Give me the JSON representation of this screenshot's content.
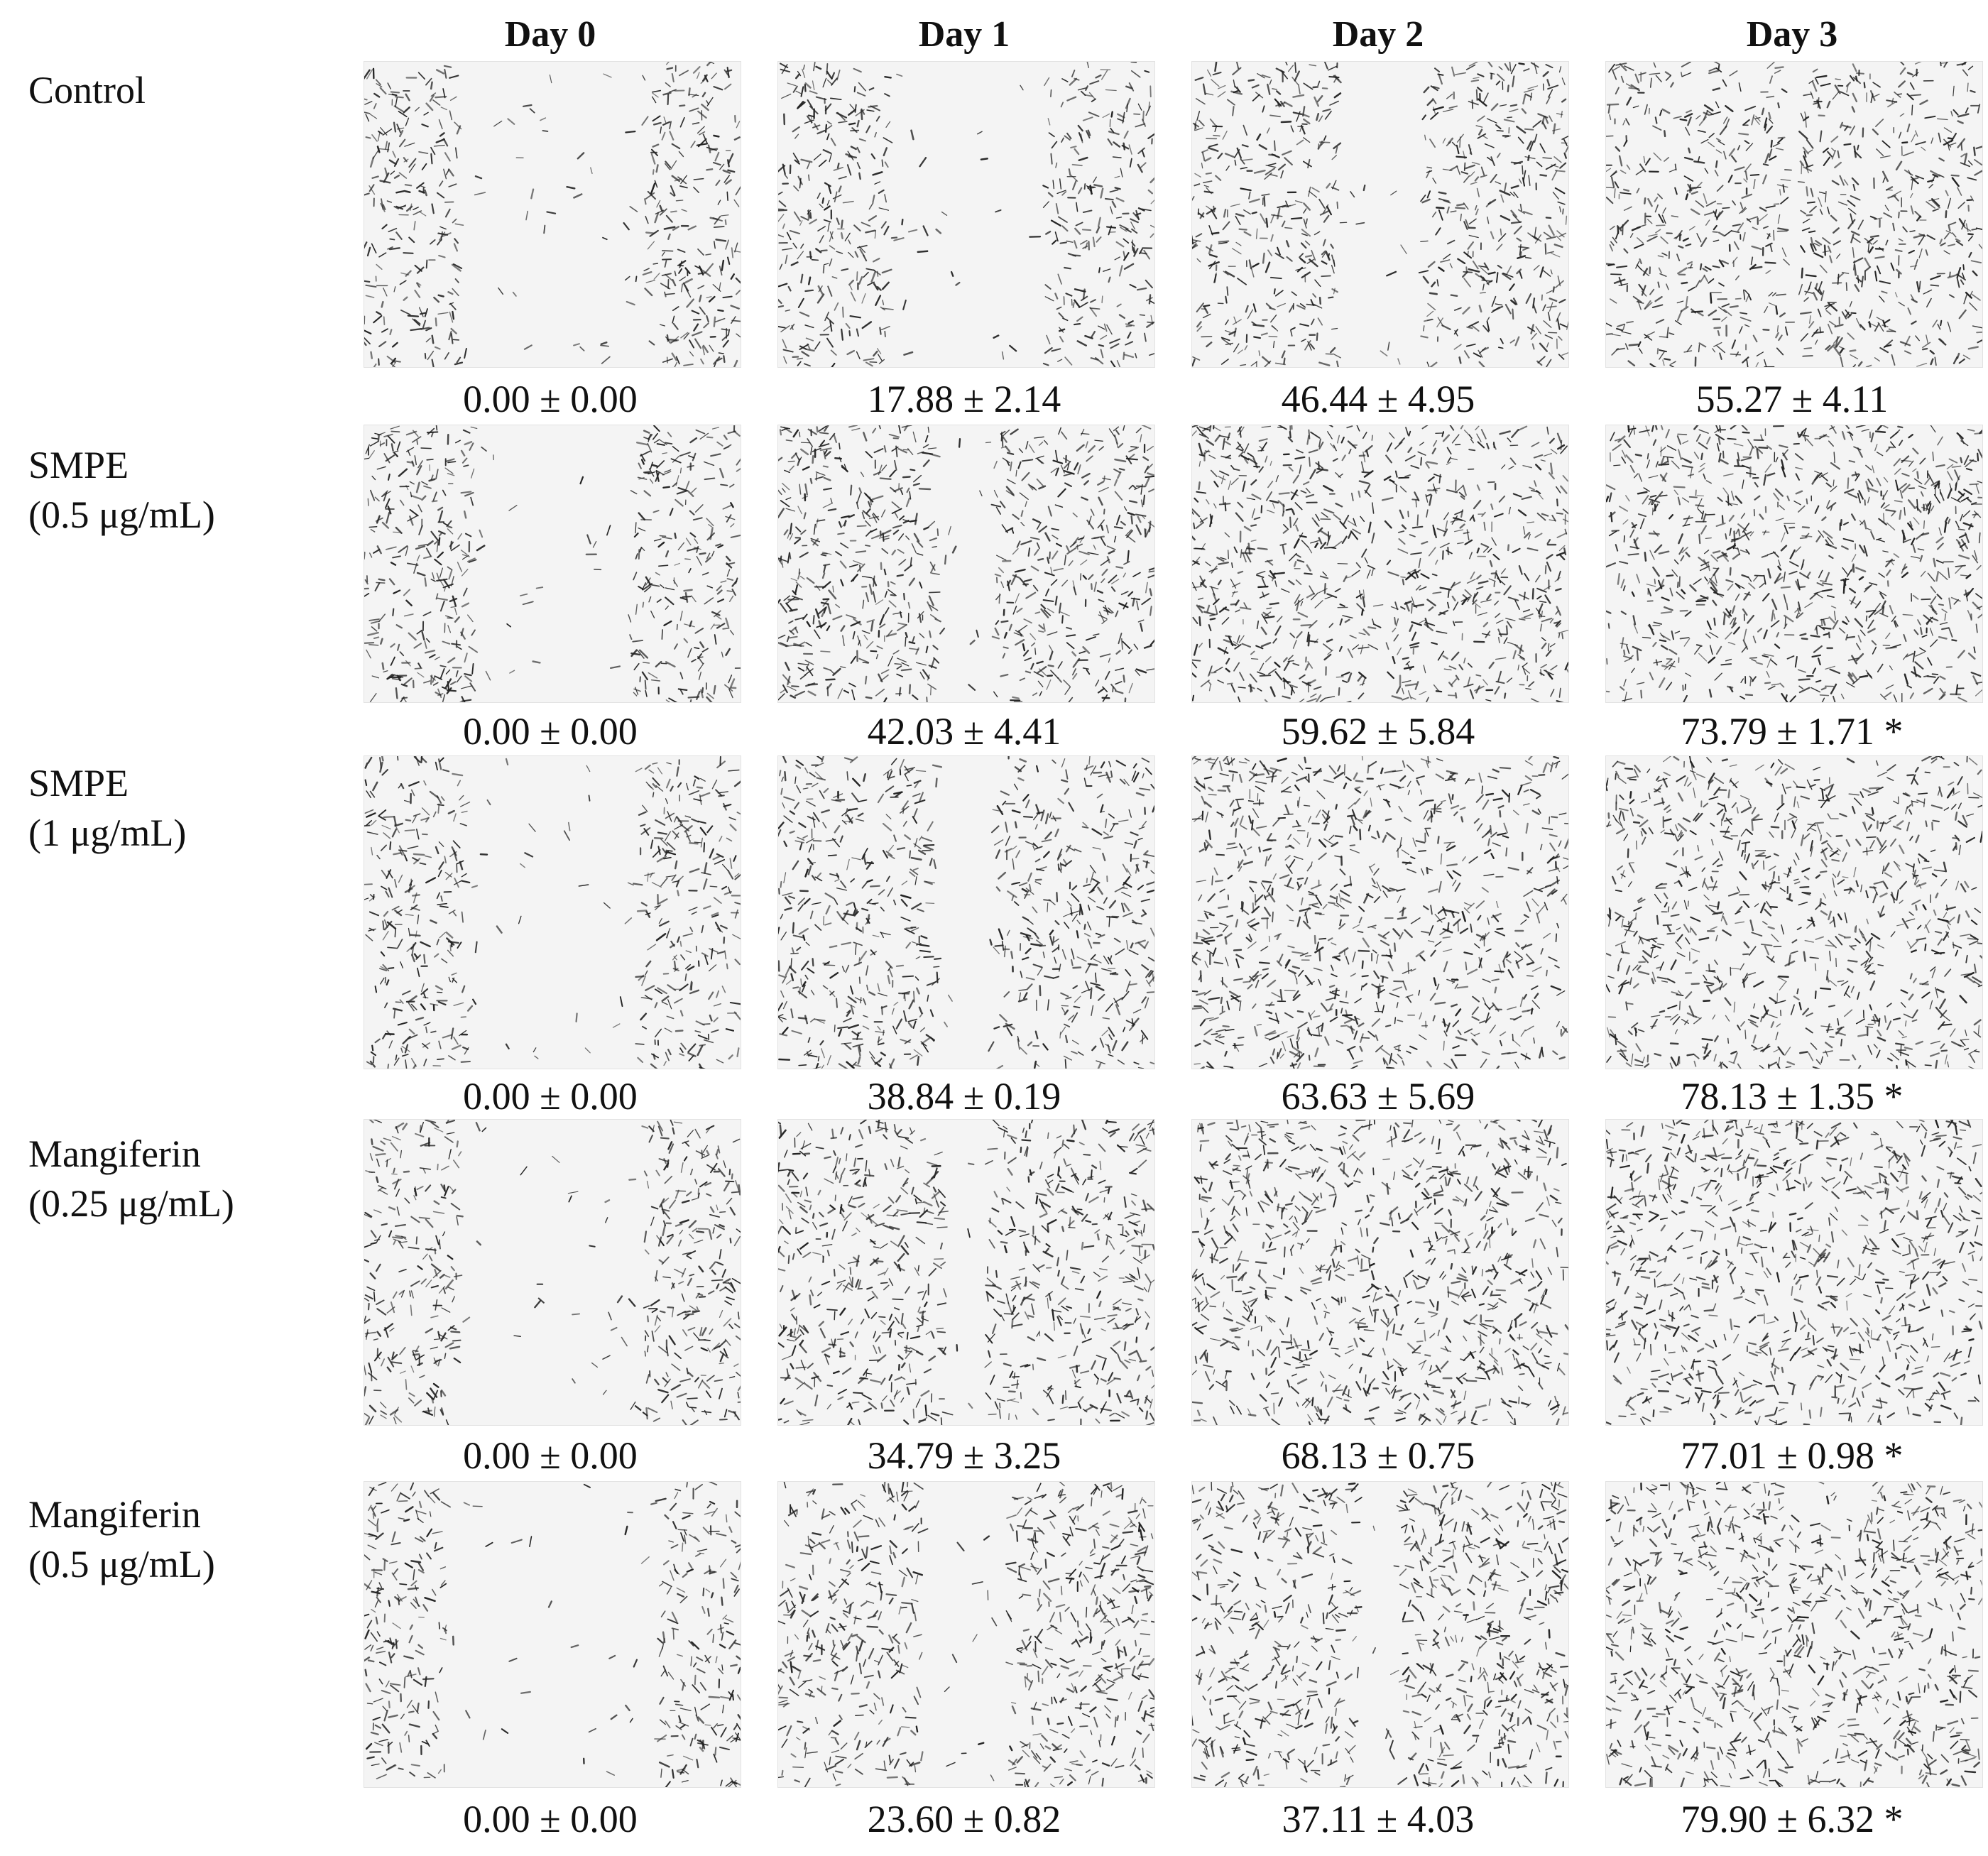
{
  "columns": [
    "Day 0",
    "Day 1",
    "Day 2",
    "Day 3"
  ],
  "rows": [
    {
      "label": "Control",
      "values": [
        "0.00 ± 0.00",
        "17.88 ± 2.14",
        "46.44 ± 4.95",
        "55.27 ± 4.11"
      ]
    },
    {
      "label": "SMPE\n(0.5 μg/mL)",
      "values": [
        "0.00 ± 0.00",
        "42.03 ± 4.41",
        "59.62 ± 5.84",
        "73.79 ± 1.71 *"
      ]
    },
    {
      "label": "SMPE\n(1 μg/mL)",
      "values": [
        "0.00 ± 0.00",
        "38.84 ± 0.19",
        "63.63 ± 5.69",
        "78.13 ± 1.35 *"
      ]
    },
    {
      "label": "Mangiferin\n(0.25 μg/mL)",
      "values": [
        "0.00 ± 0.00",
        "34.79 ± 3.25",
        "68.13 ± 0.75",
        "77.01 ± 0.98 *"
      ]
    },
    {
      "label": "Mangiferin\n(0.5 μg/mL)",
      "values": [
        "0.00 ± 0.00",
        "23.60 ± 0.82",
        "37.11 ± 4.03",
        "79.90 ± 6.32 *"
      ]
    }
  ],
  "colors": {
    "background": "#ffffff",
    "panel": "#f4f4f4",
    "cell": "#222222"
  }
}
